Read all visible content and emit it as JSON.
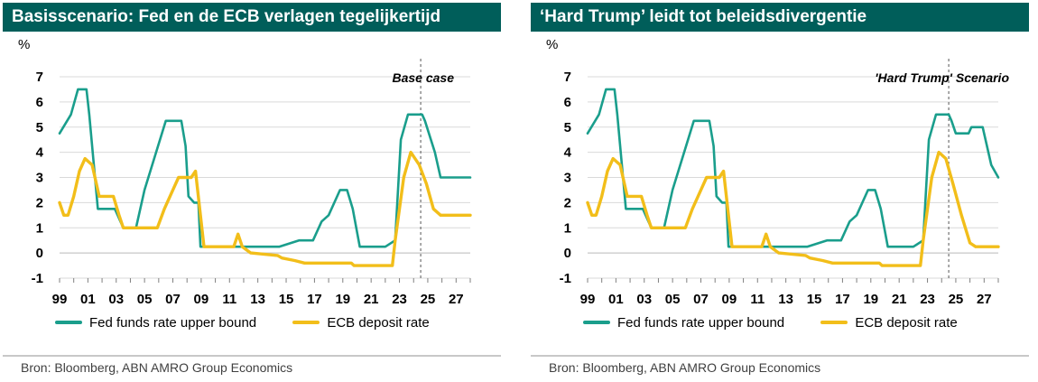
{
  "colors": {
    "fed": "#1a9e8c",
    "ecb": "#f2be1a",
    "title_bg": "#005e5a",
    "grid": "#d9d9d9"
  },
  "panels": [
    {
      "title": "Basisscenario: Fed en de ECB verlagen tegelijkertijd",
      "unit": "%",
      "annotation": "Base case",
      "source": "Bron: Bloomberg, ABN AMRO Group Economics",
      "legend": {
        "fed": "Fed funds rate upper bound",
        "ecb": "ECB deposit rate"
      }
    },
    {
      "title": "‘Hard Trump’ leidt tot beleidsdivergentie",
      "unit": "%",
      "annotation": "'Hard Trump' Scenario",
      "source": "Bron: Bloomberg, ABN AMRO Group Economics",
      "legend": {
        "fed": "Fed funds rate upper bound",
        "ecb": "ECB deposit rate"
      }
    }
  ],
  "chart_data": [
    {
      "type": "line",
      "title": "Basisscenario: Fed en de ECB verlagen tegelijkertijd",
      "ylabel": "%",
      "xlim": [
        1999,
        2028
      ],
      "ylim": [
        -1,
        7
      ],
      "yticks": [
        "7",
        "6",
        "5",
        "4",
        "3",
        "2",
        "1",
        "0",
        "-1"
      ],
      "xticks": [
        "99",
        "01",
        "03",
        "05",
        "07",
        "09",
        "11",
        "13",
        "15",
        "17",
        "19",
        "21",
        "23",
        "25",
        "27"
      ],
      "vline": 2024.5,
      "annotation": "Base case",
      "legend_position": "bottom",
      "series": [
        {
          "name": "Fed funds rate upper bound",
          "x": [
            1999.0,
            1999.8,
            2000.3,
            2000.9,
            2001.1,
            2001.7,
            2002.9,
            2003.5,
            2004.4,
            2005.0,
            2006.5,
            2007.6,
            2007.9,
            2008.1,
            2008.5,
            2008.8,
            2008.95,
            2014.5,
            2015.9,
            2016.9,
            2017.5,
            2018.0,
            2018.8,
            2019.3,
            2019.7,
            2020.2,
            2022.0,
            2022.7,
            2023.1,
            2023.6,
            2024.6,
            2024.8,
            2025.5,
            2025.9,
            2028.0
          ],
          "y": [
            4.75,
            5.5,
            6.5,
            6.5,
            5.5,
            1.75,
            1.75,
            1.0,
            1.0,
            2.5,
            5.25,
            5.25,
            4.25,
            2.25,
            2.0,
            2.0,
            0.25,
            0.25,
            0.5,
            0.5,
            1.25,
            1.5,
            2.5,
            2.5,
            1.75,
            0.25,
            0.25,
            0.5,
            4.5,
            5.5,
            5.5,
            5.25,
            4.0,
            3.0,
            3.0
          ]
        },
        {
          "name": "ECB deposit rate",
          "x": [
            1999.0,
            1999.3,
            1999.6,
            2000.0,
            2000.4,
            2000.8,
            2001.3,
            2001.8,
            2002.8,
            2003.2,
            2003.5,
            2005.9,
            2006.4,
            2007.0,
            2007.4,
            2008.3,
            2008.6,
            2009.2,
            2011.3,
            2011.6,
            2011.9,
            2012.5,
            2014.4,
            2014.7,
            2015.6,
            2016.3,
            2019.6,
            2019.8,
            2022.5,
            2022.7,
            2023.3,
            2023.8,
            2024.4,
            2024.9,
            2025.4,
            2025.9,
            2028.0
          ],
          "y": [
            2.0,
            1.5,
            1.5,
            2.25,
            3.25,
            3.75,
            3.5,
            2.25,
            2.25,
            1.5,
            1.0,
            1.0,
            1.75,
            2.5,
            3.0,
            3.0,
            3.25,
            0.25,
            0.25,
            0.75,
            0.25,
            0.0,
            -0.1,
            -0.2,
            -0.3,
            -0.4,
            -0.4,
            -0.5,
            -0.5,
            0.5,
            3.0,
            4.0,
            3.5,
            2.75,
            1.75,
            1.5,
            1.5
          ]
        }
      ]
    },
    {
      "type": "line",
      "title": "‘Hard Trump’ leidt tot beleidsdivergentie",
      "ylabel": "%",
      "xlim": [
        1999,
        2028
      ],
      "ylim": [
        -1,
        7
      ],
      "yticks": [
        "7",
        "6",
        "5",
        "4",
        "3",
        "2",
        "1",
        "0",
        "-1"
      ],
      "xticks": [
        "99",
        "01",
        "03",
        "05",
        "07",
        "09",
        "11",
        "13",
        "15",
        "17",
        "19",
        "21",
        "23",
        "25",
        "27"
      ],
      "vline": 2024.5,
      "annotation": "'Hard Trump' Scenario",
      "legend_position": "bottom",
      "series": [
        {
          "name": "Fed funds rate upper bound",
          "x": [
            1999.0,
            1999.8,
            2000.3,
            2000.9,
            2001.1,
            2001.7,
            2002.9,
            2003.5,
            2004.4,
            2005.0,
            2006.5,
            2007.6,
            2007.9,
            2008.1,
            2008.5,
            2008.8,
            2008.95,
            2014.5,
            2015.9,
            2016.9,
            2017.5,
            2018.0,
            2018.8,
            2019.3,
            2019.7,
            2020.2,
            2022.0,
            2022.7,
            2023.1,
            2023.6,
            2024.5,
            2024.7,
            2025.0,
            2025.9,
            2026.1,
            2026.9,
            2027.5,
            2028.0
          ],
          "y": [
            4.75,
            5.5,
            6.5,
            6.5,
            5.5,
            1.75,
            1.75,
            1.0,
            1.0,
            2.5,
            5.25,
            5.25,
            4.25,
            2.25,
            2.0,
            2.0,
            0.25,
            0.25,
            0.5,
            0.5,
            1.25,
            1.5,
            2.5,
            2.5,
            1.75,
            0.25,
            0.25,
            0.5,
            4.5,
            5.5,
            5.5,
            5.25,
            4.75,
            4.75,
            5.0,
            5.0,
            3.5,
            3.0
          ]
        },
        {
          "name": "ECB deposit rate",
          "x": [
            1999.0,
            1999.3,
            1999.6,
            2000.0,
            2000.4,
            2000.8,
            2001.3,
            2001.8,
            2002.8,
            2003.2,
            2003.5,
            2005.9,
            2006.4,
            2007.0,
            2007.4,
            2008.3,
            2008.6,
            2009.2,
            2011.3,
            2011.6,
            2011.9,
            2012.5,
            2014.4,
            2014.7,
            2015.6,
            2016.3,
            2019.6,
            2019.8,
            2022.5,
            2022.7,
            2023.3,
            2023.8,
            2024.3,
            2024.8,
            2025.4,
            2026.0,
            2026.4,
            2028.0
          ],
          "y": [
            2.0,
            1.5,
            1.5,
            2.25,
            3.25,
            3.75,
            3.5,
            2.25,
            2.25,
            1.5,
            1.0,
            1.0,
            1.75,
            2.5,
            3.0,
            3.0,
            3.25,
            0.25,
            0.25,
            0.75,
            0.25,
            0.0,
            -0.1,
            -0.2,
            -0.3,
            -0.4,
            -0.4,
            -0.5,
            -0.5,
            0.5,
            3.0,
            4.0,
            3.75,
            2.75,
            1.5,
            0.4,
            0.25,
            0.25
          ]
        }
      ]
    }
  ]
}
